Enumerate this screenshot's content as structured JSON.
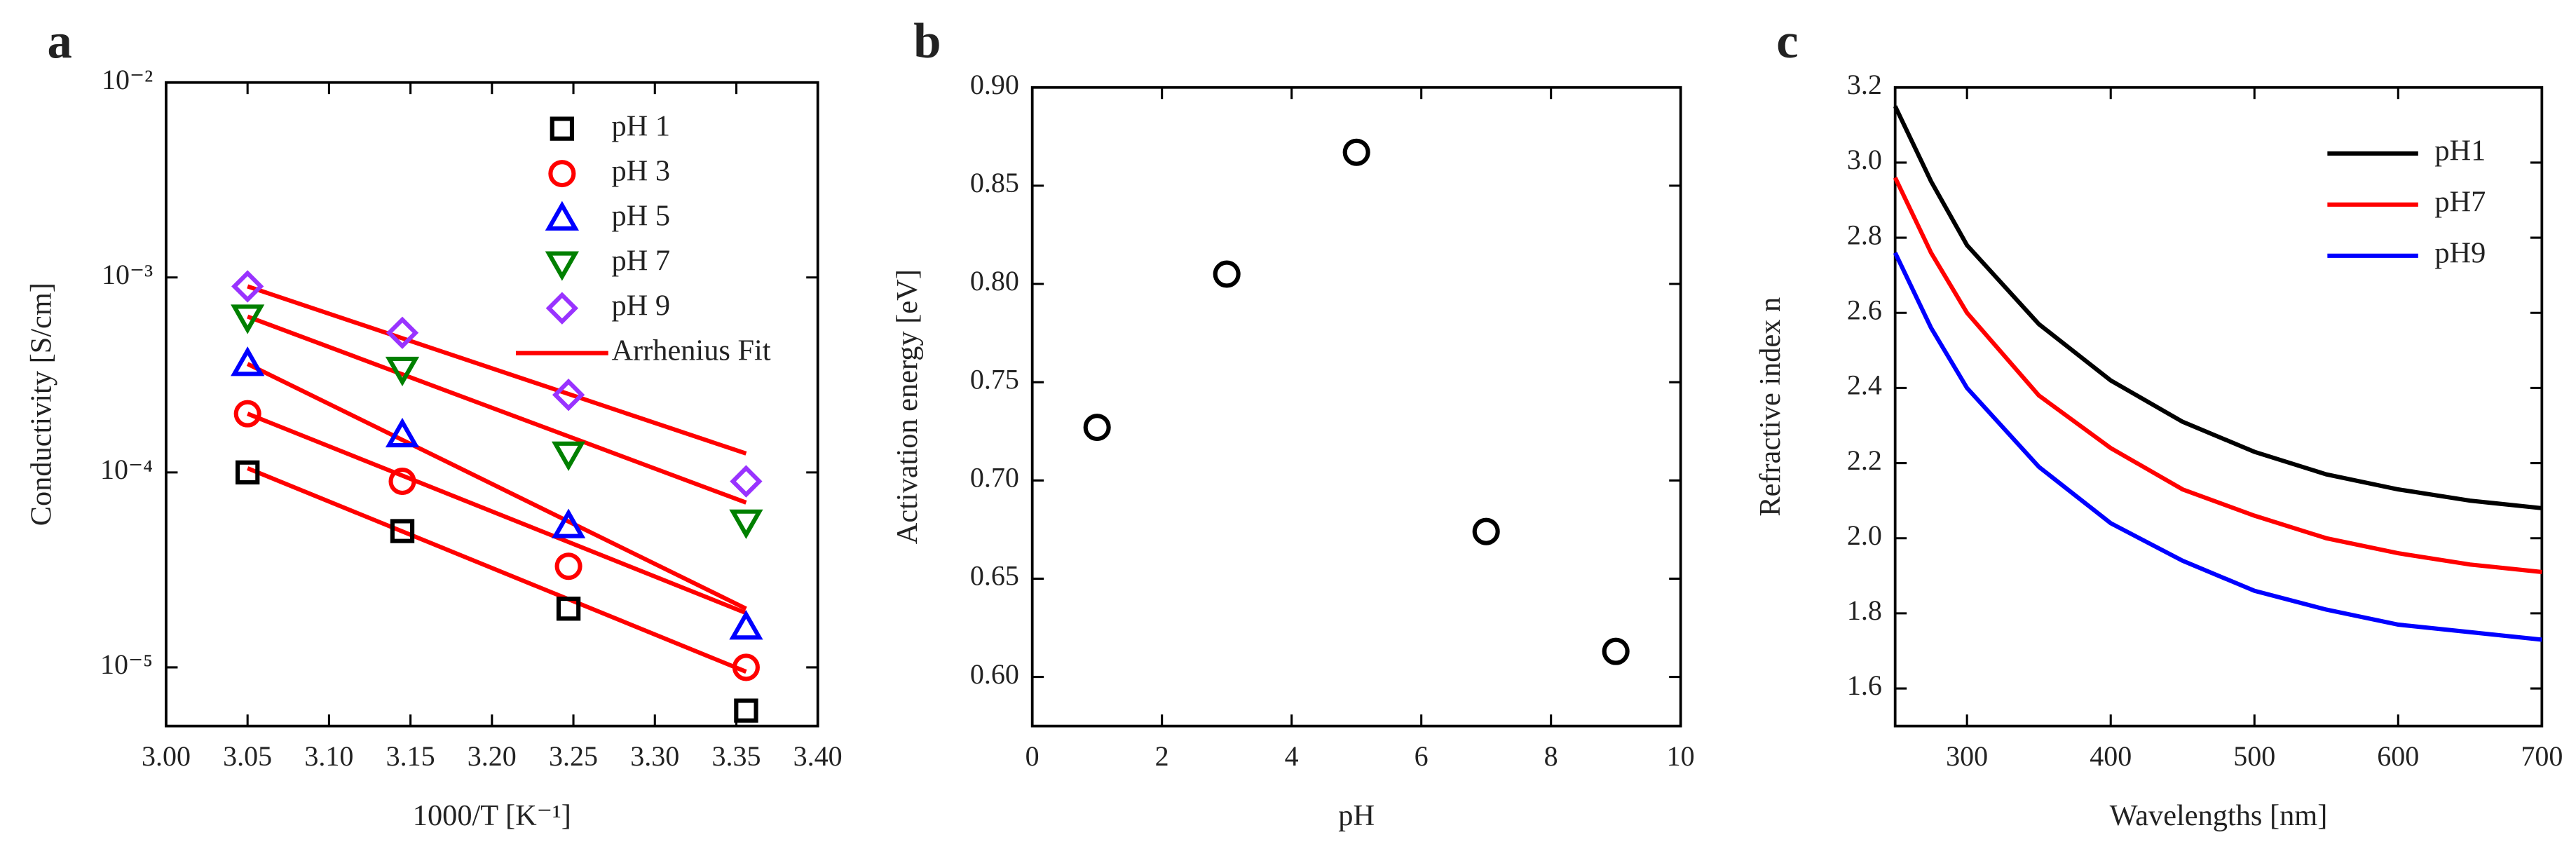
{
  "chart_data": [
    {
      "type": "scatter",
      "panel_label": "a",
      "xlabel": "1000/T [K⁻¹]",
      "ylabel": "Conductivity [S/cm]",
      "log_y": true,
      "legend": "upper right",
      "xlim": [
        3.0,
        3.4
      ],
      "xticks": [
        {
          "value": 3.0,
          "label": "3.00"
        },
        3.05,
        {
          "value": 3.1,
          "label": "3.10"
        },
        3.15,
        {
          "value": 3.2,
          "label": "3.20"
        },
        3.25,
        {
          "value": 3.3,
          "label": "3.30"
        },
        3.35,
        {
          "value": 3.4,
          "label": "3.40"
        }
      ],
      "ylim": [
        5e-06,
        0.01
      ],
      "yticks": [
        {
          "value": 1e-05,
          "label": "10⁻⁵"
        },
        {
          "value": 0.0001,
          "label": "10⁻⁴"
        },
        {
          "value": 0.001,
          "label": "10⁻³"
        },
        {
          "value": 0.01,
          "label": "10⁻²"
        }
      ],
      "x": [
        3.05,
        3.145,
        3.247,
        3.356
      ],
      "series": [
        {
          "name": "pH 1",
          "color": "#000000",
          "marker": "square",
          "values": [
            0.0001,
            5e-05,
            2e-05,
            6e-06
          ]
        },
        {
          "name": "pH 3",
          "color": "#ff0000",
          "marker": "circle",
          "values": [
            0.0002,
            9e-05,
            3.3e-05,
            1e-05
          ]
        },
        {
          "name": "pH 5",
          "color": "#0000ff",
          "marker": "triangle-up",
          "values": [
            0.00036,
            0.000155,
            5.3e-05,
            1.6e-05
          ]
        },
        {
          "name": "pH 7",
          "color": "#008000",
          "marker": "triangle-down",
          "values": [
            0.00063,
            0.00034,
            0.000125,
            5.6e-05
          ]
        },
        {
          "name": "pH 9",
          "color": "#9933ff",
          "marker": "diamond",
          "values": [
            0.0009,
            0.00052,
            0.00025,
            9e-05
          ]
        }
      ],
      "fits": {
        "name": "Arrhenius Fit",
        "color": "#ff0000",
        "x": [
          3.05,
          3.356
        ],
        "lines": [
          [
            0.000105,
            9.5e-06
          ],
          [
            0.0002,
            1.9e-05
          ],
          [
            0.00036,
            2e-05
          ],
          [
            0.00063,
            7e-05
          ],
          [
            0.0009,
            0.000125
          ]
        ]
      }
    },
    {
      "type": "scatter",
      "panel_label": "b",
      "xlabel": "pH",
      "ylabel": "Activation energy [eV]",
      "xlim": [
        0,
        10
      ],
      "xticks": [
        0,
        2,
        4,
        6,
        8,
        10
      ],
      "ylim": [
        0.575,
        0.9
      ],
      "yticks": [
        {
          "value": 0.6,
          "label": "0.60"
        },
        0.65,
        {
          "value": 0.7,
          "label": "0.70"
        },
        0.75,
        {
          "value": 0.8,
          "label": "0.80"
        },
        0.85,
        {
          "value": 0.9,
          "label": "0.90"
        }
      ],
      "x": [
        1,
        3,
        5,
        7,
        9
      ],
      "series": [
        {
          "color": "#000000",
          "marker": "circle",
          "values": [
            0.727,
            0.805,
            0.867,
            0.674,
            0.613
          ]
        }
      ]
    },
    {
      "type": "line",
      "panel_label": "c",
      "xlabel": "Wavelengths [nm]",
      "ylabel": "Refractive index n",
      "legend": "upper right",
      "xlim": [
        250,
        700
      ],
      "xticks": [
        300,
        400,
        500,
        600,
        700
      ],
      "ylim": [
        1.5,
        3.2
      ],
      "yticks": [
        1.6,
        1.8,
        {
          "value": 2.0,
          "label": "2.0"
        },
        2.2,
        2.4,
        2.6,
        2.8,
        {
          "value": 3.0,
          "label": "3.0"
        },
        3.2
      ],
      "x": [
        250,
        275,
        300,
        350,
        400,
        450,
        500,
        550,
        600,
        650,
        700
      ],
      "series": [
        {
          "name": "pH1",
          "color": "#000000",
          "values": [
            3.15,
            2.95,
            2.78,
            2.57,
            2.42,
            2.31,
            2.23,
            2.17,
            2.13,
            2.1,
            2.08
          ]
        },
        {
          "name": "pH7",
          "color": "#ff0000",
          "values": [
            2.96,
            2.76,
            2.6,
            2.38,
            2.24,
            2.13,
            2.06,
            2.0,
            1.96,
            1.93,
            1.91
          ]
        },
        {
          "name": "pH9",
          "color": "#0000ff",
          "values": [
            2.76,
            2.56,
            2.4,
            2.19,
            2.04,
            1.94,
            1.86,
            1.81,
            1.77,
            1.75,
            1.73
          ]
        }
      ]
    }
  ]
}
